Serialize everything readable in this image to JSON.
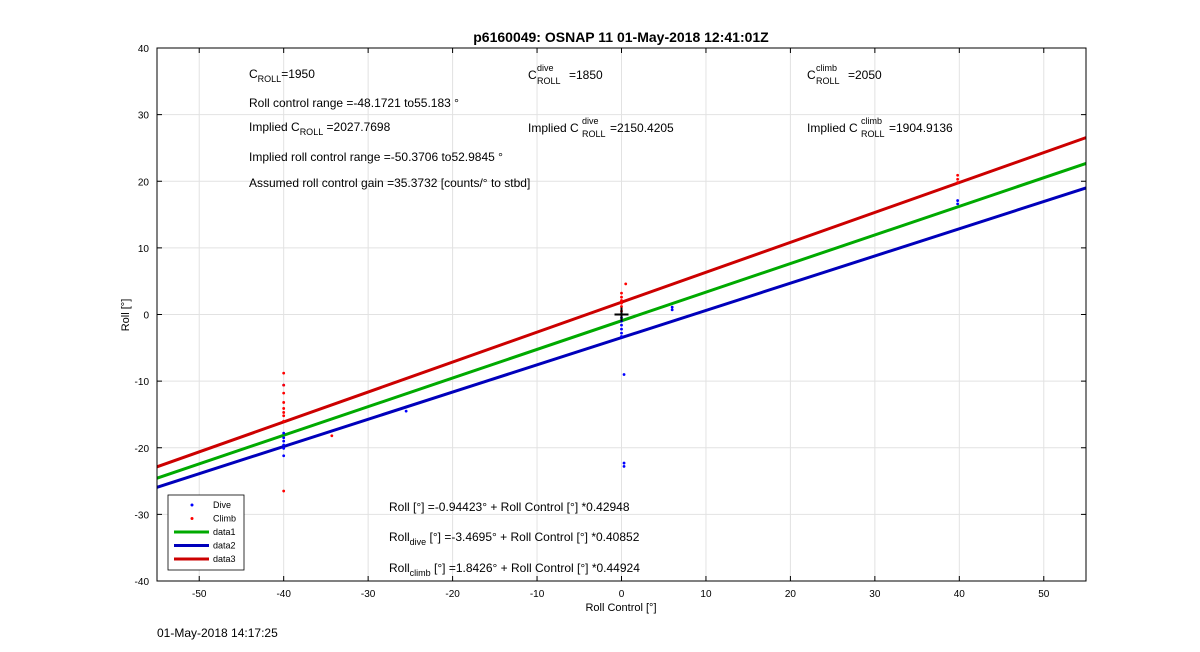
{
  "figure": {
    "footer_timestamp": "01-May-2018 14:17:25"
  },
  "chart_data": {
    "type": "scatter",
    "title": "p6160049: OSNAP 11 01-May-2018 12:41:01Z",
    "xlabel": "Roll Control [°]",
    "ylabel": "Roll [°]",
    "xlim": [
      -55,
      55
    ],
    "ylim": [
      -40,
      40
    ],
    "xticks": [
      -50,
      -40,
      -30,
      -20,
      -10,
      0,
      10,
      20,
      30,
      40,
      50
    ],
    "yticks": [
      -40,
      -30,
      -20,
      -10,
      0,
      10,
      20,
      30,
      40
    ],
    "grid": true,
    "legend_placement": "bottom-left",
    "colors": {
      "dive": "#0000ff",
      "climb": "#ff0000",
      "data1": "#00aa00",
      "data2": "#0000bb",
      "data3": "#cc0000",
      "grid": "#e2e2e2"
    },
    "series": [
      {
        "name": "Dive",
        "kind": "points",
        "color": "#0000ff",
        "points": [
          [
            -40,
            -10.6
          ],
          [
            -40,
            -17.8
          ],
          [
            -40,
            -18.5
          ],
          [
            -40,
            -19.0
          ],
          [
            -40,
            -19.6
          ],
          [
            -40,
            -20.1
          ],
          [
            -40,
            -21.2
          ],
          [
            -25.5,
            -14.5
          ],
          [
            0,
            -0.5
          ],
          [
            0,
            -1.0
          ],
          [
            0,
            -1.6
          ],
          [
            0,
            -2.2
          ],
          [
            0,
            -2.8
          ],
          [
            0,
            -3.3
          ],
          [
            0.3,
            -22.3
          ],
          [
            0.3,
            -22.8
          ],
          [
            0.3,
            -9.0
          ],
          [
            6,
            0.7
          ],
          [
            6,
            1.1
          ],
          [
            39.8,
            16.6
          ],
          [
            39.8,
            17.1
          ]
        ]
      },
      {
        "name": "Climb",
        "kind": "points",
        "color": "#ff0000",
        "points": [
          [
            -40,
            -8.8
          ],
          [
            -40,
            -10.6
          ],
          [
            -40,
            -11.8
          ],
          [
            -40,
            -13.2
          ],
          [
            -40,
            -14.1
          ],
          [
            -40,
            -14.7
          ],
          [
            -40,
            -15.2
          ],
          [
            -40,
            -16.0
          ],
          [
            -40,
            -26.5
          ],
          [
            -34.3,
            -18.2
          ],
          [
            0,
            3.2
          ],
          [
            0,
            2.6
          ],
          [
            0,
            2.1
          ],
          [
            0,
            1.7
          ],
          [
            0,
            1.2
          ],
          [
            0,
            0.5
          ],
          [
            0.5,
            4.6
          ],
          [
            39.8,
            19.8
          ],
          [
            39.8,
            20.3
          ],
          [
            39.8,
            20.9
          ]
        ]
      },
      {
        "name": "data1",
        "kind": "line",
        "color": "#00aa00",
        "intercept": -0.94423,
        "slope": 0.42948
      },
      {
        "name": "data2",
        "kind": "line",
        "color": "#0000bb",
        "intercept": -3.4695,
        "slope": 0.40852
      },
      {
        "name": "data3",
        "kind": "line",
        "color": "#cc0000",
        "intercept": 1.8426,
        "slope": 0.44924
      }
    ],
    "marker": {
      "x": 0,
      "y": 0,
      "symbol": "+"
    },
    "annotations": {
      "c_roll": {
        "sym": "C",
        "sub": "ROLL",
        "sup": "",
        "value": "=1950"
      },
      "c_roll_dive": {
        "sym": "C",
        "sub": "ROLL",
        "sup": "dive",
        "value": "=1850"
      },
      "c_roll_climb": {
        "sym": "C",
        "sub": "ROLL",
        "sup": "climb",
        "value": "=2050"
      },
      "roll_range": "Roll control range =-48.1721 to55.183 °",
      "implied_c_roll": {
        "prefix": "Implied C",
        "sub": "ROLL",
        "sup": "",
        "value": " =2027.7698"
      },
      "implied_c_roll_dive": {
        "prefix": "Implied C",
        "sub": "ROLL",
        "sup": "dive",
        "value": "=2150.4205"
      },
      "implied_c_roll_climb": {
        "prefix": "Implied C",
        "sub": "ROLL",
        "sup": "climb",
        "value": " =1904.9136"
      },
      "implied_range": "Implied roll control range =-50.3706 to52.9845 °",
      "gain": "Assumed roll control gain =35.3732 [counts/° to stbd]",
      "fit_all": {
        "prefix": "Roll [°] =-0.94423° + Roll Control [°] *0.42948",
        "sub": ""
      },
      "fit_dive": {
        "lead": "Roll",
        "sub": "dive",
        "rest": " [°] =-3.4695° + Roll Control [°] *0.40852"
      },
      "fit_climb": {
        "lead": "Roll",
        "sub": "climb",
        "rest": " [°] =1.8426° + Roll Control [°] *0.44924"
      }
    }
  }
}
